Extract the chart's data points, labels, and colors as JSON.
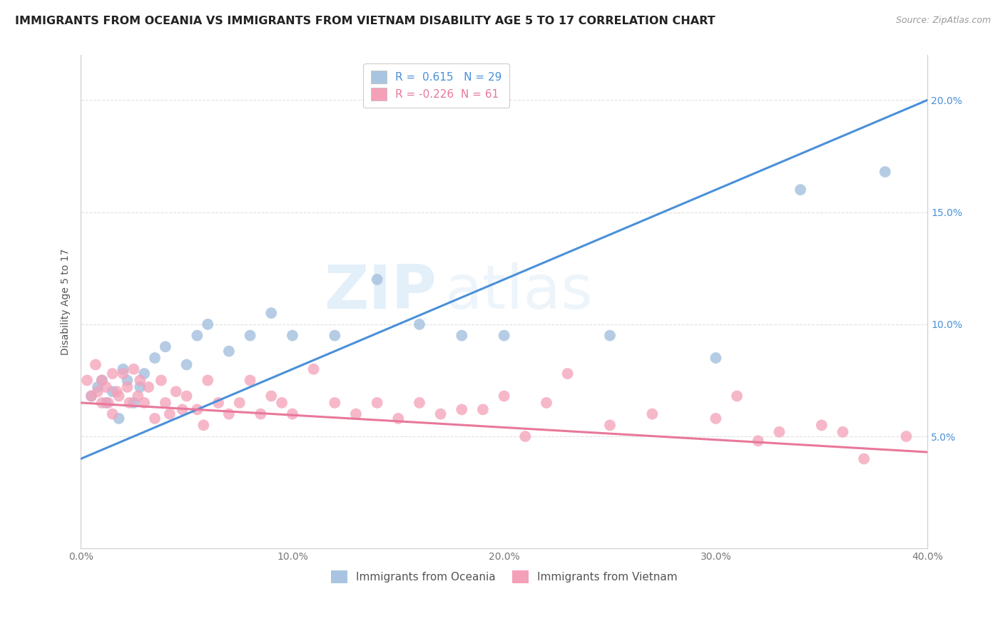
{
  "title": "IMMIGRANTS FROM OCEANIA VS IMMIGRANTS FROM VIETNAM DISABILITY AGE 5 TO 17 CORRELATION CHART",
  "source": "Source: ZipAtlas.com",
  "ylabel": "Disability Age 5 to 17",
  "watermark": "ZIPatlas",
  "r_oceania": 0.615,
  "n_oceania": 29,
  "r_vietnam": -0.226,
  "n_vietnam": 61,
  "xlim": [
    0.0,
    0.4
  ],
  "ylim": [
    0.0,
    0.22
  ],
  "yticks": [
    0.05,
    0.1,
    0.15,
    0.2
  ],
  "ytick_labels": [
    "5.0%",
    "10.0%",
    "15.0%",
    "20.0%"
  ],
  "xticks": [
    0.0,
    0.1,
    0.2,
    0.3,
    0.4
  ],
  "xtick_labels": [
    "0.0%",
    "10.0%",
    "20.0%",
    "30.0%",
    "40.0%"
  ],
  "color_oceania": "#a8c4e0",
  "color_vietnam": "#f4a0b8",
  "line_color_oceania": "#4a90d9",
  "line_color_vietnam": "#e8789a",
  "title_color": "#222222",
  "axis_color": "#cccccc",
  "grid_color": "#e0e0e0",
  "background_color": "#ffffff",
  "title_fontsize": 11.5,
  "source_fontsize": 9,
  "label_fontsize": 10,
  "tick_fontsize": 10,
  "legend_fontsize": 11,
  "oceania_x": [
    0.005,
    0.008,
    0.01,
    0.012,
    0.015,
    0.018,
    0.02,
    0.022,
    0.025,
    0.028,
    0.03,
    0.035,
    0.04,
    0.05,
    0.055,
    0.06,
    0.07,
    0.08,
    0.09,
    0.1,
    0.12,
    0.14,
    0.16,
    0.18,
    0.2,
    0.25,
    0.3,
    0.34,
    0.38
  ],
  "oceania_y": [
    0.068,
    0.072,
    0.075,
    0.065,
    0.07,
    0.058,
    0.08,
    0.075,
    0.065,
    0.072,
    0.078,
    0.085,
    0.09,
    0.082,
    0.095,
    0.1,
    0.088,
    0.095,
    0.105,
    0.095,
    0.095,
    0.12,
    0.1,
    0.095,
    0.095,
    0.095,
    0.085,
    0.16,
    0.168
  ],
  "vietnam_x": [
    0.003,
    0.005,
    0.007,
    0.008,
    0.01,
    0.01,
    0.012,
    0.013,
    0.015,
    0.015,
    0.017,
    0.018,
    0.02,
    0.022,
    0.023,
    0.025,
    0.027,
    0.028,
    0.03,
    0.032,
    0.035,
    0.038,
    0.04,
    0.042,
    0.045,
    0.048,
    0.05,
    0.055,
    0.058,
    0.06,
    0.065,
    0.07,
    0.075,
    0.08,
    0.085,
    0.09,
    0.095,
    0.1,
    0.11,
    0.12,
    0.13,
    0.14,
    0.15,
    0.16,
    0.17,
    0.18,
    0.19,
    0.2,
    0.21,
    0.22,
    0.23,
    0.25,
    0.27,
    0.3,
    0.31,
    0.32,
    0.33,
    0.35,
    0.36,
    0.37,
    0.39
  ],
  "vietnam_y": [
    0.075,
    0.068,
    0.082,
    0.07,
    0.075,
    0.065,
    0.072,
    0.065,
    0.078,
    0.06,
    0.07,
    0.068,
    0.078,
    0.072,
    0.065,
    0.08,
    0.068,
    0.075,
    0.065,
    0.072,
    0.058,
    0.075,
    0.065,
    0.06,
    0.07,
    0.062,
    0.068,
    0.062,
    0.055,
    0.075,
    0.065,
    0.06,
    0.065,
    0.075,
    0.06,
    0.068,
    0.065,
    0.06,
    0.08,
    0.065,
    0.06,
    0.065,
    0.058,
    0.065,
    0.06,
    0.062,
    0.062,
    0.068,
    0.05,
    0.065,
    0.078,
    0.055,
    0.06,
    0.058,
    0.068,
    0.048,
    0.052,
    0.055,
    0.052,
    0.04,
    0.05
  ],
  "oceania_line_x": [
    0.0,
    0.4
  ],
  "oceania_line_y": [
    0.04,
    0.2
  ],
  "vietnam_line_x": [
    0.0,
    0.4
  ],
  "vietnam_line_y": [
    0.065,
    0.043
  ]
}
